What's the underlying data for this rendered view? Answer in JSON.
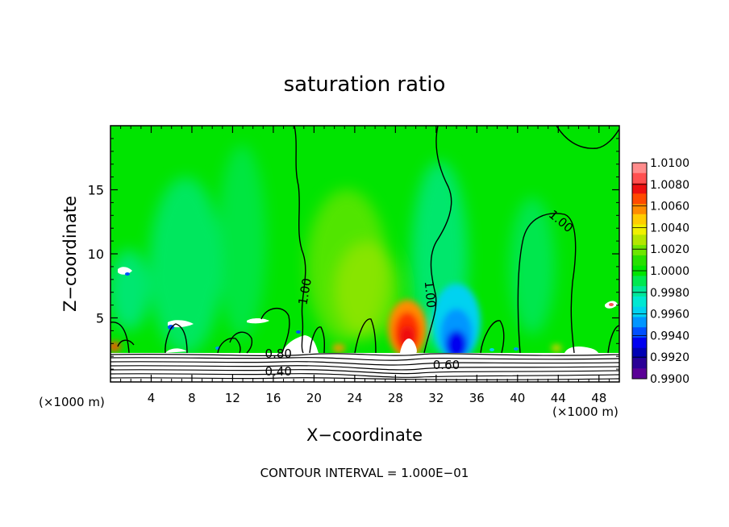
{
  "chart_data": {
    "type": "heatmap",
    "title": "saturation ratio",
    "xlabel": "X−coordinate",
    "ylabel": "Z−coordinate",
    "x_unit_label_left": "(×1000 m)",
    "x_unit_label_right": "(×1000 m)",
    "xlim": [
      0,
      50
    ],
    "ylim": [
      0,
      20
    ],
    "x_ticks": [
      4,
      8,
      12,
      16,
      20,
      24,
      28,
      32,
      36,
      40,
      44,
      48
    ],
    "x_tick_labels": [
      "4",
      "8",
      "12",
      "16",
      "20",
      "24",
      "28",
      "32",
      "36",
      "40",
      "44",
      "48"
    ],
    "y_ticks": [
      5,
      10,
      15
    ],
    "y_tick_labels": [
      "5",
      "10",
      "15"
    ],
    "footer": "CONTOUR INTERVAL = 1.000E−01",
    "colorbar": {
      "range": [
        0.99,
        1.01
      ],
      "labels": [
        "1.0100",
        "1.0080",
        "1.0060",
        "1.0040",
        "1.0020",
        "1.0000",
        "0.9980",
        "0.9960",
        "0.9940",
        "0.9920",
        "0.9900"
      ],
      "colors": [
        "#ff8c8c",
        "#ff5050",
        "#ee1010",
        "#ff4a00",
        "#ff8c00",
        "#ffcc00",
        "#f0f000",
        "#b4e600",
        "#6ee600",
        "#28e000",
        "#00e400",
        "#00e850",
        "#00e89a",
        "#00e8d2",
        "#00d2f0",
        "#0096ff",
        "#0050ff",
        "#0000f0",
        "#0000b4",
        "#2a0096",
        "#5a0096"
      ]
    },
    "contour_labels": [
      {
        "text": "1.00",
        "x": 19.5,
        "y": 7.0,
        "angle": -80
      },
      {
        "text": "1.00",
        "x": 31.0,
        "y": 6.8,
        "angle": 85
      },
      {
        "text": "1.00",
        "x": 44.0,
        "y": 12.3,
        "angle": 40
      },
      {
        "text": "0.80",
        "x": 16.5,
        "y": 1.9,
        "angle": 0
      },
      {
        "text": "0.40",
        "x": 16.5,
        "y": 0.5,
        "angle": 0
      },
      {
        "text": "0.60",
        "x": 33.0,
        "y": 1.0,
        "angle": 0
      }
    ]
  }
}
